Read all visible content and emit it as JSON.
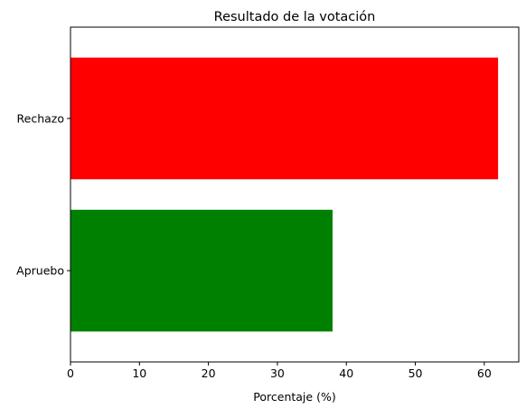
{
  "chart_data": {
    "type": "bar",
    "orientation": "horizontal",
    "title": "Resultado de la votación",
    "xlabel": "Porcentaje (%)",
    "ylabel": "",
    "categories": [
      "Apruebo",
      "Rechazo"
    ],
    "values": [
      38,
      62
    ],
    "colors": [
      "#008000",
      "#ff0000"
    ],
    "xlim": [
      0,
      65
    ],
    "xticks": [
      0,
      10,
      20,
      30,
      40,
      50,
      60
    ],
    "xtick_labels": [
      "0",
      "10",
      "20",
      "30",
      "40",
      "50",
      "60"
    ],
    "grid": false
  }
}
